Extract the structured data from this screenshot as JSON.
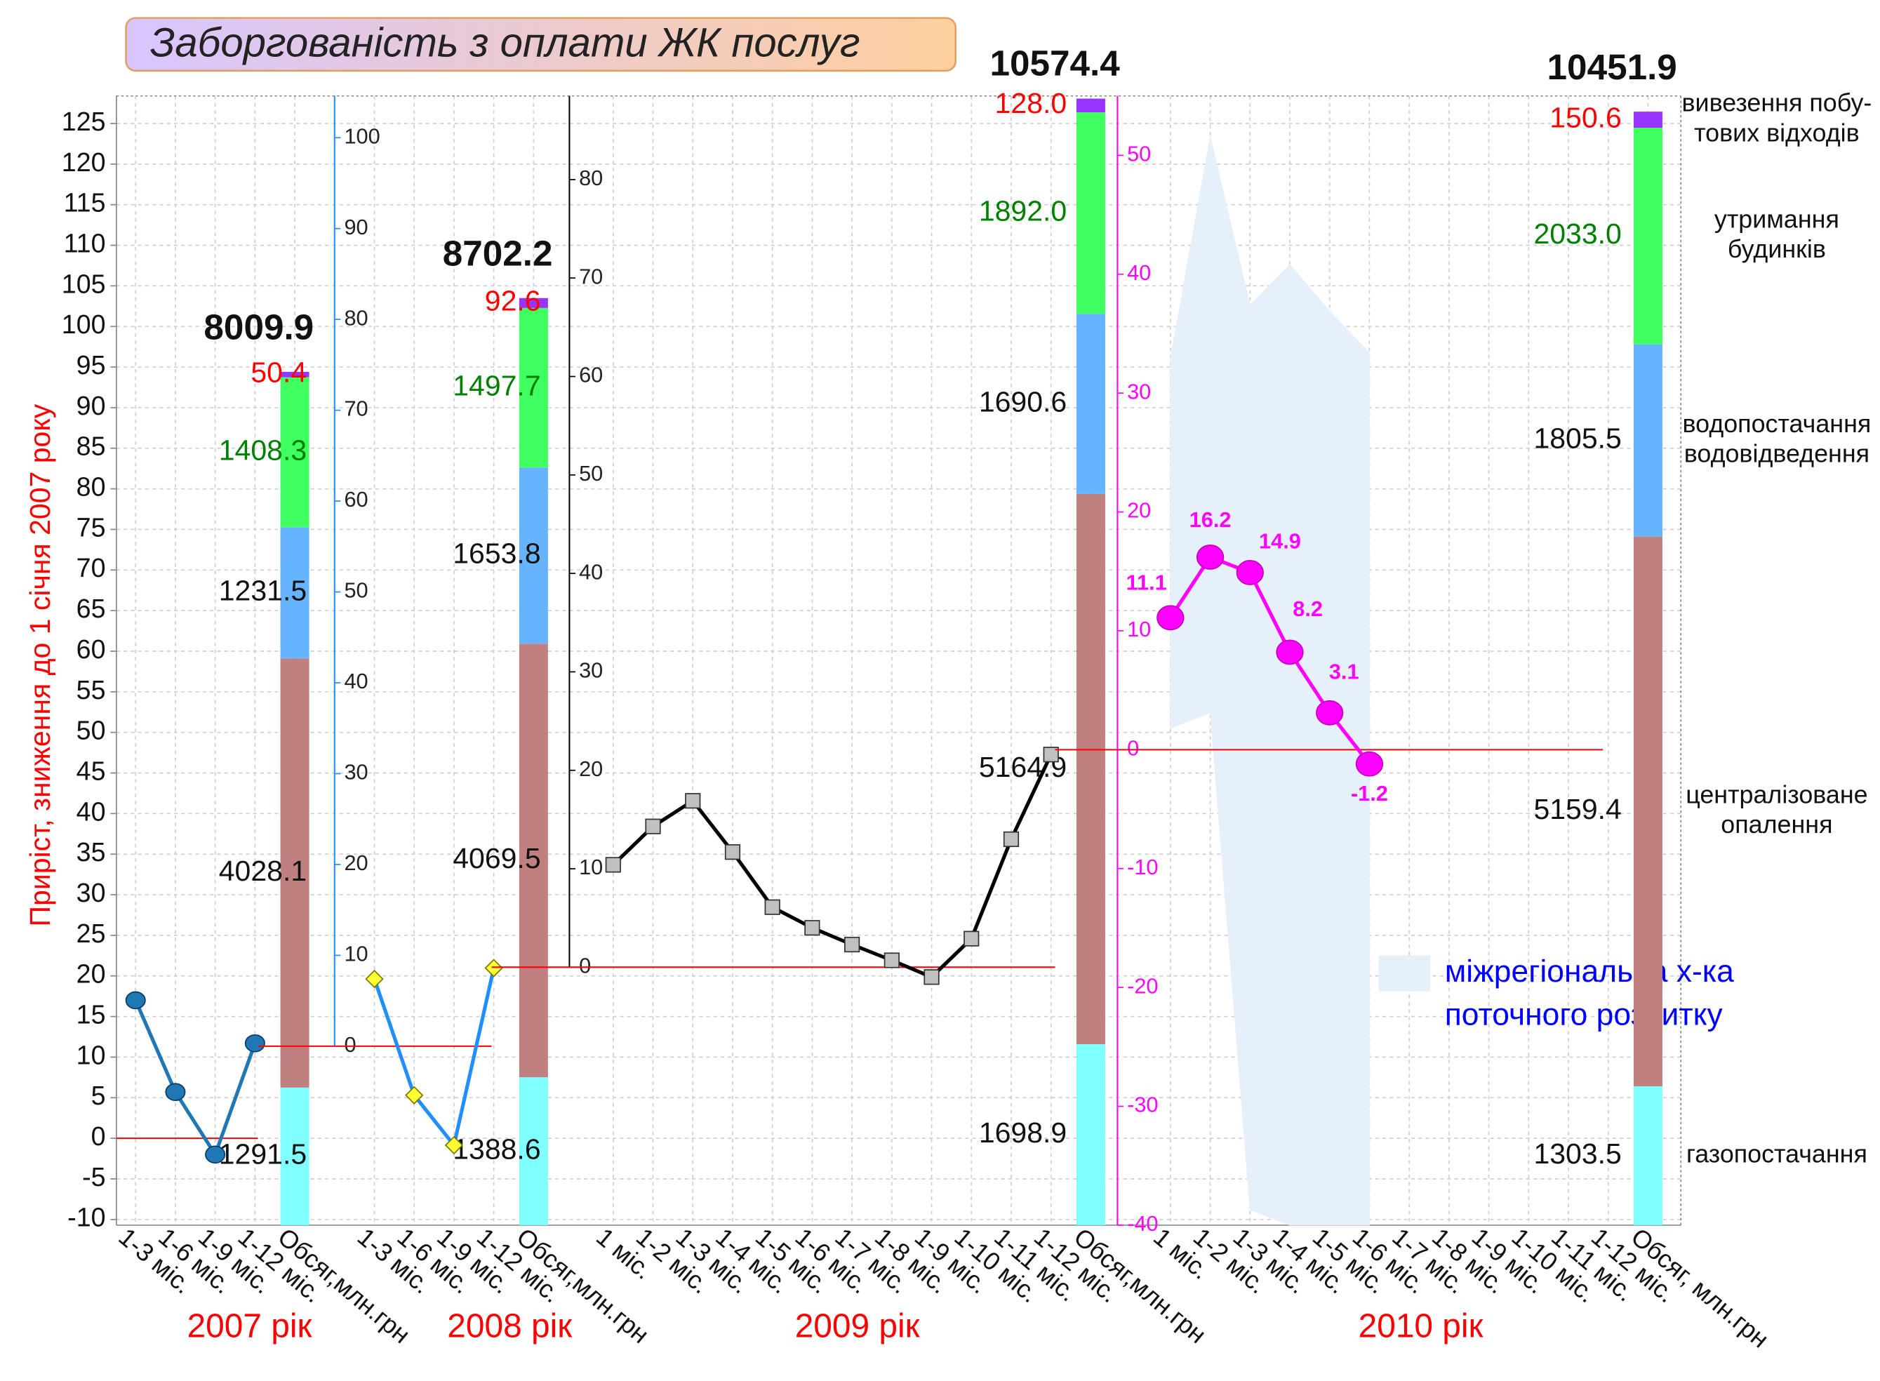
{
  "chart_data": {
    "type": "combo",
    "title": "Заборгованість з оплати ЖК послуг",
    "y_label": "Приріст, зниження до 1 січня 2007 року",
    "ylim": [
      -10.7,
      128.4
    ],
    "yticks": [
      -10,
      -5,
      0,
      5,
      10,
      15,
      20,
      25,
      30,
      35,
      40,
      45,
      50,
      55,
      60,
      65,
      70,
      75,
      80,
      85,
      90,
      95,
      100,
      105,
      110,
      115,
      120,
      125
    ],
    "grid": true,
    "bar_lim": [
      0,
      10600
    ],
    "segments": [
      {
        "name": [
          "газопостачання"
        ],
        "color": "#80ffff"
      },
      {
        "name": [
          "централізоване",
          "опалення"
        ],
        "color": "#c08080"
      },
      {
        "name": [
          "водопостачання",
          "водовідведення"
        ],
        "color": "#66b3ff"
      },
      {
        "name": [
          "утримання",
          "будинків"
        ],
        "color": "#40ff60",
        "label_color": "#008000"
      },
      {
        "name": [
          "вивезення побу-",
          "тових відходів"
        ],
        "color": "#9933ff",
        "label_color": "#ff0000"
      }
    ],
    "area": {
      "name": [
        "міжрегіональна х-ка",
        "поточного розвитку"
      ],
      "color": "#e6f0fb",
      "text_color": "#0000ff",
      "panel": 3,
      "upper": [
        32.9,
        51.6,
        37.4,
        40.8,
        36.9,
        33.4
      ],
      "lower": [
        1.8,
        3.1,
        -38.7,
        -40,
        -40,
        -40
      ]
    },
    "panels": [
      {
        "label": "2007 рік",
        "axis": "y",
        "categories": [
          "1-3 міс.",
          "1-6 міс.",
          "1-9 міс.",
          "1-12 міс.",
          "Обсяг,млн.грн"
        ],
        "line_color": "#1f78b4",
        "marker": "circle",
        "marker_color": "#1f78b4",
        "values": [
          17,
          5.7,
          -2,
          11.7,
          null
        ],
        "bar": {
          "values": [
            1291.5,
            4028.1,
            1231.5,
            1408.3,
            50.4
          ],
          "value_labels": [
            "1291.5",
            "4028.1",
            "1231.5",
            "1408.3",
            "50.4"
          ],
          "total": 8009.9
        }
      },
      {
        "label": "2008 рік",
        "axis": "own",
        "ylim": [
          -19.7,
          104.6
        ],
        "yticks": [
          0,
          10,
          20,
          30,
          40,
          50,
          60,
          70,
          80,
          90,
          100
        ],
        "axis_color": "#1f8fff",
        "tick_label_color": "#222222",
        "categories": [
          "1-3 міс.",
          "1-6 міс.",
          "1-9 міс.",
          "1-12 міс.",
          "Обсяг,млн.грн"
        ],
        "line_color": "#1f8fff",
        "marker": "diamond",
        "marker_color": "#ffff33",
        "values": [
          7.4,
          -5.4,
          -10.9,
          8.6,
          null
        ],
        "bar": {
          "values": [
            1388.6,
            4069.5,
            1653.8,
            1497.7,
            92.6
          ],
          "value_labels": [
            "1388.6",
            "4069.5",
            "1653.8",
            "1497.7",
            "92.6"
          ],
          "total": 8702.2
        }
      },
      {
        "label": "2009 рік",
        "axis": "own",
        "ylim": [
          -26.2,
          88.5
        ],
        "yticks": [
          0,
          10,
          20,
          30,
          40,
          50,
          60,
          70,
          80
        ],
        "axis_color": "#000000",
        "tick_label_color": "#222222",
        "categories": [
          "1 міс.",
          "1-2 міс.",
          "1-3 міс.",
          "1-4 міс.",
          "1-5 міс.",
          "1-6 міс.",
          "1-7 міс.",
          "1-8 міс.",
          "1-9 міс.",
          "1-10 міс.",
          "1-11 міс.",
          "1-12 міс.",
          "Обсяг,млн.грн"
        ],
        "line_color": "#000000",
        "marker": "square",
        "marker_color": "#c0c0c0",
        "values": [
          10.4,
          14.3,
          16.9,
          11.7,
          6.1,
          4,
          2.3,
          0.7,
          -1,
          2.9,
          13,
          21.6,
          null
        ],
        "bar": {
          "values": [
            1698.9,
            5164.9,
            1690.6,
            1892.0,
            128.0
          ],
          "value_labels": [
            "1698.9",
            "5164.9",
            "1690.6",
            "1892.0",
            "128.0"
          ],
          "total": 10574.4
        }
      },
      {
        "label": "2010 рік",
        "axis": "own",
        "ylim": [
          -40,
          55
        ],
        "yticks": [
          -40,
          -30,
          -20,
          -10,
          0,
          10,
          20,
          30,
          40,
          50
        ],
        "axis_color": "#ff00ff",
        "tick_label_color": "#ff00ff",
        "categories": [
          "1 міс.",
          "1-2 міс.",
          "1-3 міс.",
          "1-4 міс.",
          "1-5 міс.",
          "1-6 міс.",
          "1-7 міс.",
          "1-8 міс.",
          "1-9 міс.",
          "1-10 міс.",
          "1-11 міс.",
          "1-12 міс.",
          "Обсяг, млн.грн"
        ],
        "line_color": "#ff00ff",
        "marker": "ellipse",
        "marker_color": "#ff00ff",
        "data_labels": true,
        "values": [
          11.1,
          16.2,
          14.9,
          8.2,
          3.1,
          -1.2,
          null,
          null,
          null,
          null,
          null,
          null,
          null
        ],
        "bar": {
          "values": [
            1303.5,
            5159.4,
            1805.5,
            2033.0,
            150.6
          ],
          "value_labels": [
            "1303.5",
            "5159.4",
            "1805.5",
            "2033.0",
            "150.6"
          ],
          "total": 10451.9
        }
      }
    ]
  }
}
